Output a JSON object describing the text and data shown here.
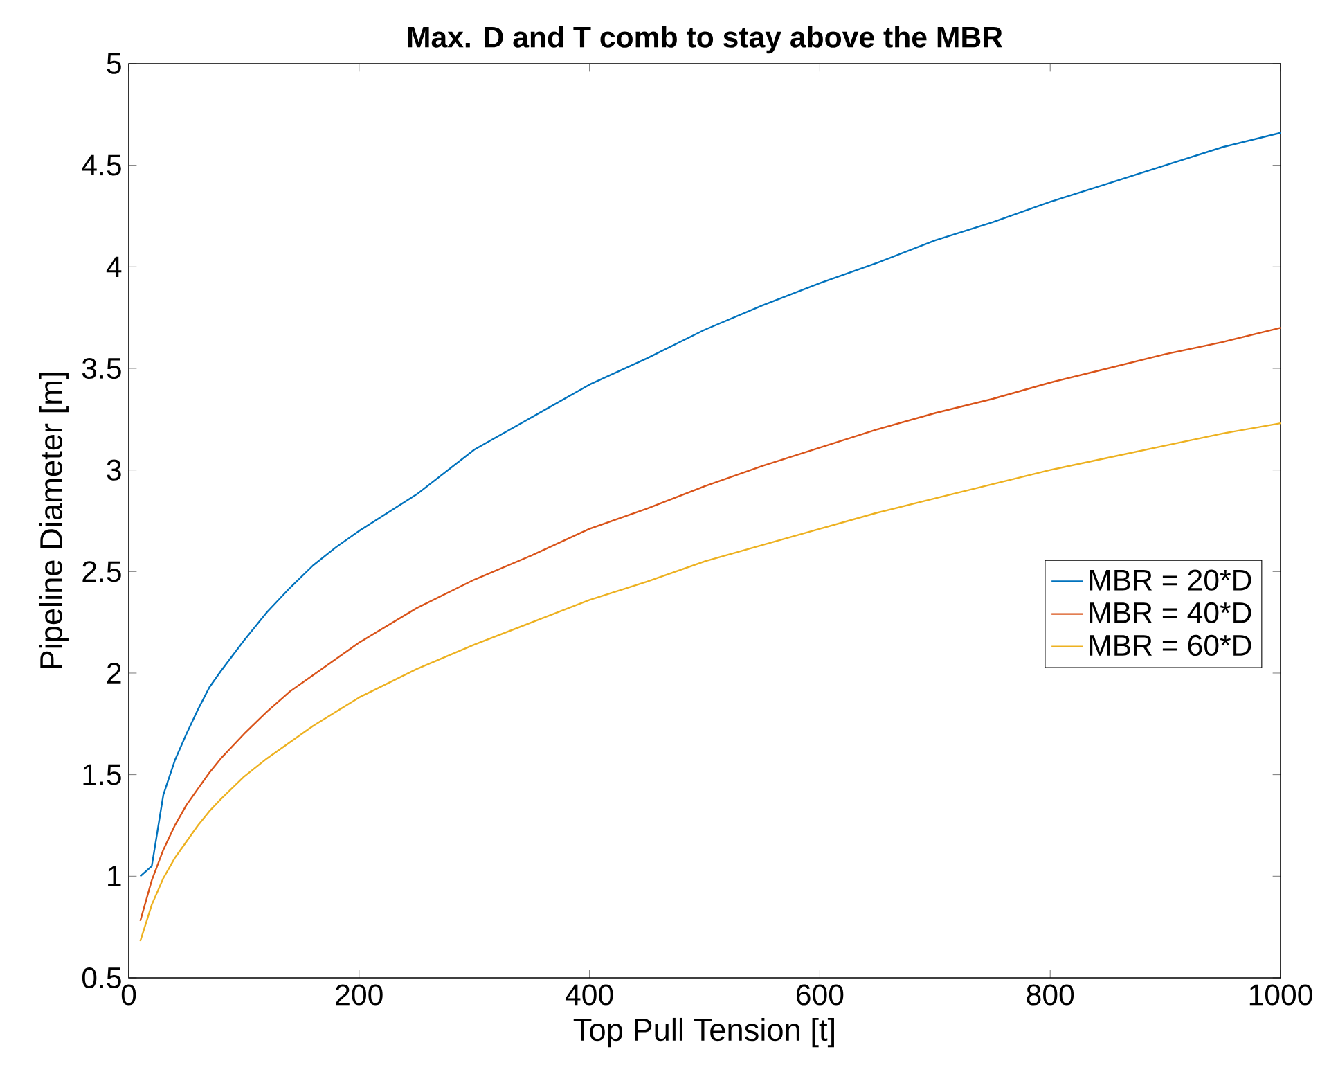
{
  "chart_data": {
    "type": "line",
    "title": "Max. D and T comb to stay above the MBR",
    "xlabel": "Top Pull Tension [t]",
    "ylabel": "Pipeline Diameter [m]",
    "xlim": [
      0,
      1000
    ],
    "ylim": [
      0.5,
      5
    ],
    "xticks": [
      0,
      200,
      400,
      600,
      800,
      1000
    ],
    "yticks": [
      0.5,
      1,
      1.5,
      2,
      2.5,
      3,
      3.5,
      4,
      4.5,
      5
    ],
    "grid": false,
    "legend": "right",
    "marker": "none",
    "line_style": "solid",
    "x": [
      10,
      20,
      30,
      40,
      50,
      60,
      70,
      80,
      100,
      120,
      140,
      160,
      180,
      200,
      250,
      300,
      350,
      400,
      450,
      500,
      550,
      600,
      650,
      700,
      750,
      800,
      850,
      900,
      950,
      1000
    ],
    "series": [
      {
        "name": "MBR = 20*D",
        "color": "#0072bd",
        "values": [
          1.0,
          1.05,
          1.4,
          1.57,
          1.7,
          1.82,
          1.93,
          2.01,
          2.16,
          2.3,
          2.42,
          2.53,
          2.62,
          2.7,
          2.88,
          3.1,
          3.26,
          3.42,
          3.55,
          3.69,
          3.81,
          3.92,
          4.02,
          4.13,
          4.22,
          4.32,
          4.41,
          4.5,
          4.59,
          4.66
        ]
      },
      {
        "name": "MBR = 40*D",
        "color": "#d95319",
        "values": [
          0.78,
          0.98,
          1.13,
          1.25,
          1.35,
          1.43,
          1.51,
          1.58,
          1.7,
          1.81,
          1.91,
          1.99,
          2.07,
          2.15,
          2.32,
          2.46,
          2.58,
          2.71,
          2.81,
          2.92,
          3.02,
          3.11,
          3.2,
          3.28,
          3.35,
          3.43,
          3.5,
          3.57,
          3.63,
          3.7
        ]
      },
      {
        "name": "MBR = 60*D",
        "color": "#edb120",
        "values": [
          0.68,
          0.86,
          0.99,
          1.09,
          1.17,
          1.25,
          1.32,
          1.38,
          1.49,
          1.58,
          1.66,
          1.74,
          1.81,
          1.88,
          2.02,
          2.14,
          2.25,
          2.36,
          2.45,
          2.55,
          2.63,
          2.71,
          2.79,
          2.86,
          2.93,
          3.0,
          3.06,
          3.12,
          3.18,
          3.23
        ]
      }
    ]
  }
}
